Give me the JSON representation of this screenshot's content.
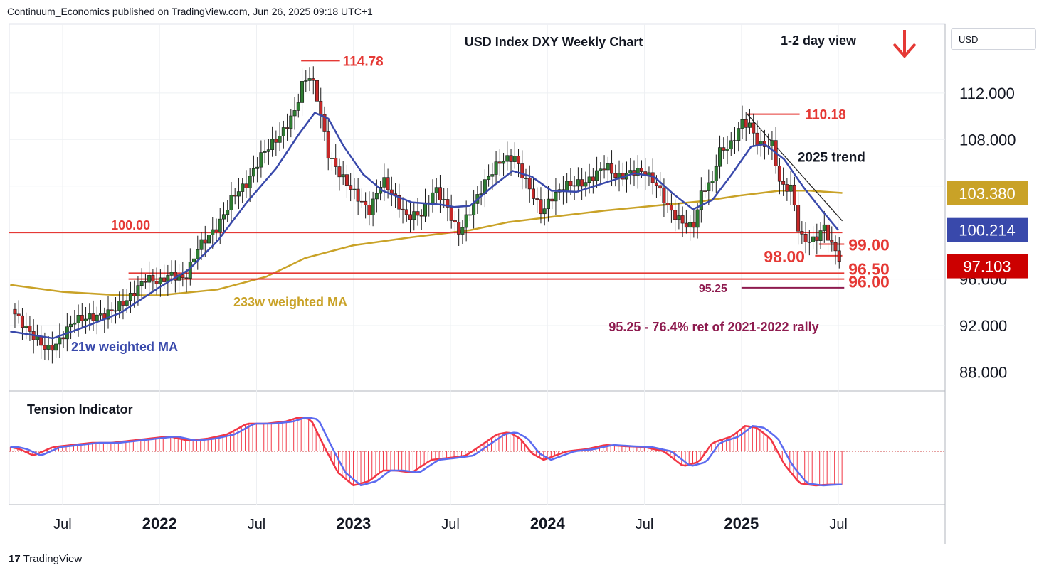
{
  "header": {
    "published": "Continuum_Economics published on TradingView.com, Jun 26, 2025 09:18 UTC+1"
  },
  "footer": {
    "brand": "TradingView",
    "logo_glyph": "17"
  },
  "currency_label": "USD",
  "colors": {
    "up": "#2e7d32",
    "down": "#c62828",
    "ma21": "#3949ab",
    "ma233": "#c9a227",
    "level": "#e53935",
    "fib": "#8e1b4f",
    "tension_red": "#f23645",
    "tension_blue": "#5c6bf0"
  },
  "chart_data": {
    "type": "candlestick",
    "title": "USD Index DXY Weekly Chart",
    "view_label": "1-2 day view",
    "view_arrow": "down-arrow",
    "ylim": [
      86.5,
      117.8
    ],
    "y_ticks": [
      "112.000",
      "108.000",
      "104.000",
      "96.000",
      "92.000",
      "88.000"
    ],
    "y_tick_values": [
      112,
      108,
      104,
      96,
      92,
      88
    ],
    "x_ticks": [
      {
        "label": "Jul",
        "bold": false,
        "t": 2021.5
      },
      {
        "label": "2022",
        "bold": true,
        "t": 2022.0
      },
      {
        "label": "Jul",
        "bold": false,
        "t": 2022.5
      },
      {
        "label": "2023",
        "bold": true,
        "t": 2023.0
      },
      {
        "label": "Jul",
        "bold": false,
        "t": 2023.5
      },
      {
        "label": "2024",
        "bold": true,
        "t": 2024.0
      },
      {
        "label": "Jul",
        "bold": false,
        "t": 2024.5
      },
      {
        "label": "2025",
        "bold": true,
        "t": 2025.0
      },
      {
        "label": "Jul",
        "bold": false,
        "t": 2025.5
      }
    ],
    "xlim": [
      2021.225,
      2026.05
    ],
    "price_path": [
      [
        2021.23,
        93.5
      ],
      [
        2021.32,
        91.6
      ],
      [
        2021.42,
        89.9
      ],
      [
        2021.47,
        90.4
      ],
      [
        2021.56,
        92.5
      ],
      [
        2021.72,
        92.9
      ],
      [
        2021.84,
        94.3
      ],
      [
        2021.93,
        96.1
      ],
      [
        2022.0,
        95.7
      ],
      [
        2022.05,
        96.4
      ],
      [
        2022.13,
        96.0
      ],
      [
        2022.2,
        98.8
      ],
      [
        2022.3,
        100.5
      ],
      [
        2022.38,
        103.2
      ],
      [
        2022.45,
        104.2
      ],
      [
        2022.53,
        106.8
      ],
      [
        2022.63,
        108.5
      ],
      [
        2022.7,
        110.5
      ],
      [
        2022.74,
        113.0
      ],
      [
        2022.78,
        113.5
      ],
      [
        2022.82,
        111.1
      ],
      [
        2022.87,
        106.7
      ],
      [
        2022.93,
        105.0
      ],
      [
        2023.0,
        103.5
      ],
      [
        2023.08,
        101.8
      ],
      [
        2023.15,
        104.6
      ],
      [
        2023.2,
        103.3
      ],
      [
        2023.27,
        101.4
      ],
      [
        2023.35,
        101.6
      ],
      [
        2023.42,
        103.8
      ],
      [
        2023.48,
        102.3
      ],
      [
        2023.54,
        99.9
      ],
      [
        2023.6,
        101.8
      ],
      [
        2023.68,
        104.4
      ],
      [
        2023.75,
        106.1
      ],
      [
        2023.83,
        106.5
      ],
      [
        2023.87,
        105.0
      ],
      [
        2023.92,
        103.4
      ],
      [
        2023.97,
        101.7
      ],
      [
        2024.02,
        103.0
      ],
      [
        2024.1,
        104.1
      ],
      [
        2024.2,
        104.3
      ],
      [
        2024.3,
        105.8
      ],
      [
        2024.36,
        104.7
      ],
      [
        2024.45,
        105.3
      ],
      [
        2024.5,
        105.2
      ],
      [
        2024.56,
        104.2
      ],
      [
        2024.63,
        101.9
      ],
      [
        2024.7,
        100.8
      ],
      [
        2024.75,
        100.4
      ],
      [
        2024.8,
        103.8
      ],
      [
        2024.85,
        104.3
      ],
      [
        2024.88,
        106.9
      ],
      [
        2024.95,
        107.6
      ],
      [
        2025.0,
        109.5
      ],
      [
        2025.04,
        109.3
      ],
      [
        2025.09,
        107.5
      ],
      [
        2025.16,
        107.6
      ],
      [
        2025.2,
        104.0
      ],
      [
        2025.26,
        103.8
      ],
      [
        2025.3,
        99.6
      ],
      [
        2025.36,
        99.2
      ],
      [
        2025.4,
        99.8
      ],
      [
        2025.43,
        100.6
      ],
      [
        2025.46,
        98.9
      ],
      [
        2025.48,
        98.7
      ],
      [
        2025.5,
        97.9
      ],
      [
        2025.52,
        97.1
      ]
    ],
    "ma21_path": [
      [
        2021.23,
        91.5
      ],
      [
        2021.45,
        90.9
      ],
      [
        2021.6,
        91.8
      ],
      [
        2021.8,
        93.1
      ],
      [
        2022.0,
        95.3
      ],
      [
        2022.15,
        96.8
      ],
      [
        2022.3,
        99.3
      ],
      [
        2022.45,
        102.6
      ],
      [
        2022.6,
        105.5
      ],
      [
        2022.72,
        108.5
      ],
      [
        2022.8,
        110.3
      ],
      [
        2022.87,
        109.8
      ],
      [
        2022.95,
        107.4
      ],
      [
        2023.05,
        105.0
      ],
      [
        2023.15,
        103.6
      ],
      [
        2023.3,
        102.6
      ],
      [
        2023.45,
        102.4
      ],
      [
        2023.52,
        102.2
      ],
      [
        2023.6,
        102.3
      ],
      [
        2023.72,
        104.0
      ],
      [
        2023.82,
        105.3
      ],
      [
        2023.92,
        104.8
      ],
      [
        2024.02,
        103.6
      ],
      [
        2024.15,
        103.5
      ],
      [
        2024.3,
        104.3
      ],
      [
        2024.45,
        105.1
      ],
      [
        2024.55,
        104.8
      ],
      [
        2024.65,
        103.3
      ],
      [
        2024.75,
        102.0
      ],
      [
        2024.85,
        102.8
      ],
      [
        2024.95,
        105.0
      ],
      [
        2025.05,
        107.4
      ],
      [
        2025.12,
        107.6
      ],
      [
        2025.22,
        106.3
      ],
      [
        2025.32,
        103.9
      ],
      [
        2025.42,
        101.8
      ],
      [
        2025.5,
        100.2
      ]
    ],
    "ma233_path": [
      [
        2021.23,
        95.5
      ],
      [
        2021.5,
        94.9
      ],
      [
        2021.8,
        94.6
      ],
      [
        2022.0,
        94.6
      ],
      [
        2022.3,
        95.1
      ],
      [
        2022.55,
        96.2
      ],
      [
        2022.75,
        97.8
      ],
      [
        2023.0,
        98.9
      ],
      [
        2023.3,
        99.6
      ],
      [
        2023.6,
        100.2
      ],
      [
        2023.8,
        100.9
      ],
      [
        2024.0,
        101.3
      ],
      [
        2024.3,
        101.9
      ],
      [
        2024.55,
        102.3
      ],
      [
        2024.8,
        102.7
      ],
      [
        2025.0,
        103.2
      ],
      [
        2025.2,
        103.6
      ],
      [
        2025.35,
        103.6
      ],
      [
        2025.52,
        103.4
      ]
    ],
    "levels": [
      {
        "label": "114.78",
        "value": 114.78,
        "t_start": 2022.73,
        "t_end": 2022.93
      },
      {
        "label": "110.18",
        "value": 110.18,
        "t_start": 2025.03,
        "t_end": 2025.3
      },
      {
        "label": "100.00",
        "value": 100.0,
        "t_start": 2021.225,
        "t_end": 2025.52,
        "label_t": 2021.75
      },
      {
        "label": "99.00",
        "value": 99.0,
        "t_start": 2025.4,
        "t_end": 2025.53
      },
      {
        "label": "98.00",
        "value": 98.0,
        "t_start": 2025.38,
        "t_end": 2025.52
      },
      {
        "label": "96.50",
        "value": 96.5,
        "t_start": 2021.84,
        "t_end": 2025.53
      },
      {
        "label": "96.00",
        "value": 96.0,
        "t_start": 2021.84,
        "t_end": 2025.53
      },
      {
        "label": "95.25",
        "value": 95.25,
        "t_start": 2025.0,
        "t_end": 2025.53
      }
    ],
    "trendline": {
      "label": "2025 trend",
      "from": [
        2025.03,
        110.18
      ],
      "to": [
        2025.52,
        101.0
      ]
    },
    "annotations": {
      "ma233_label": "233w weighted MA",
      "ma21_label": "21w weighted MA",
      "fib_note": "95.25 - 76.4% ret of 2021-2022 rally",
      "tension_title": "Tension Indicator"
    },
    "price_tags": [
      {
        "label": "103.380",
        "value": 103.38,
        "color": "#c9a227"
      },
      {
        "label": "100.214",
        "value": 100.214,
        "color": "#3949ab"
      },
      {
        "label": "97.103",
        "value": 97.103,
        "color": "#cc0000"
      }
    ],
    "tension": {
      "ylim": [
        -1,
        1
      ],
      "path": [
        [
          2021.23,
          0.1
        ],
        [
          2021.28,
          0.05
        ],
        [
          2021.35,
          -0.1
        ],
        [
          2021.45,
          0.1
        ],
        [
          2021.55,
          0.15
        ],
        [
          2021.65,
          0.2
        ],
        [
          2021.75,
          0.2
        ],
        [
          2021.85,
          0.25
        ],
        [
          2021.95,
          0.3
        ],
        [
          2022.05,
          0.35
        ],
        [
          2022.15,
          0.25
        ],
        [
          2022.25,
          0.3
        ],
        [
          2022.35,
          0.4
        ],
        [
          2022.45,
          0.65
        ],
        [
          2022.55,
          0.65
        ],
        [
          2022.65,
          0.7
        ],
        [
          2022.72,
          0.8
        ],
        [
          2022.78,
          0.75
        ],
        [
          2022.85,
          0.1
        ],
        [
          2022.92,
          -0.5
        ],
        [
          2023.0,
          -0.8
        ],
        [
          2023.08,
          -0.7
        ],
        [
          2023.15,
          -0.45
        ],
        [
          2023.22,
          -0.45
        ],
        [
          2023.3,
          -0.5
        ],
        [
          2023.4,
          -0.2
        ],
        [
          2023.5,
          -0.15
        ],
        [
          2023.58,
          -0.1
        ],
        [
          2023.66,
          0.15
        ],
        [
          2023.74,
          0.4
        ],
        [
          2023.8,
          0.45
        ],
        [
          2023.86,
          0.3
        ],
        [
          2023.92,
          -0.05
        ],
        [
          2023.98,
          -0.2
        ],
        [
          2024.1,
          0.0
        ],
        [
          2024.2,
          0.05
        ],
        [
          2024.3,
          0.15
        ],
        [
          2024.4,
          0.12
        ],
        [
          2024.5,
          0.1
        ],
        [
          2024.6,
          0.0
        ],
        [
          2024.7,
          -0.35
        ],
        [
          2024.78,
          -0.25
        ],
        [
          2024.85,
          0.2
        ],
        [
          2024.95,
          0.35
        ],
        [
          2025.02,
          0.6
        ],
        [
          2025.08,
          0.55
        ],
        [
          2025.15,
          0.3
        ],
        [
          2025.22,
          -0.3
        ],
        [
          2025.3,
          -0.75
        ],
        [
          2025.38,
          -0.8
        ],
        [
          2025.45,
          -0.78
        ],
        [
          2025.52,
          -0.78
        ]
      ]
    }
  }
}
